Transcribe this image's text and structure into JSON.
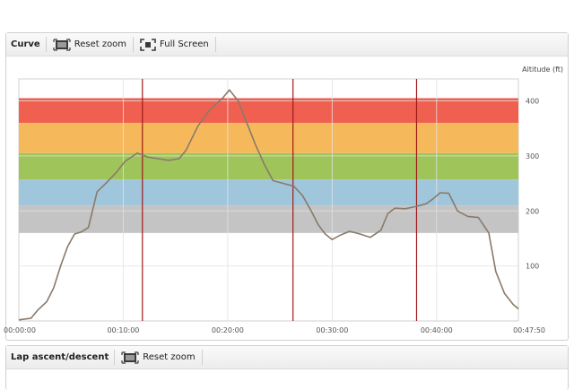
{
  "curve_panel": {
    "title": "Curve",
    "reset_zoom_label": "Reset zoom",
    "full_screen_label": "Full Screen"
  },
  "lap_panel": {
    "title": "Lap ascent/descent",
    "reset_zoom_label": "Reset zoom"
  },
  "colors": {
    "zone_red": "#ef6051",
    "zone_orange": "#f5b95c",
    "zone_green": "#9fc45a",
    "zone_blue": "#a0c6dc",
    "zone_gray": "#c4c4c4",
    "curve": "#8a7a6a",
    "lap_line": "#a01a1a",
    "grid": "#e2e2e2"
  },
  "chart_data": {
    "type": "line",
    "ylabel": "Altitude (ft)",
    "xlim_seconds": [
      0,
      2870
    ],
    "ylim": [
      0,
      440
    ],
    "x_ticks": [
      {
        "t": 0,
        "label": "00:00:00"
      },
      {
        "t": 600,
        "label": "00:10:00"
      },
      {
        "t": 1200,
        "label": "00:20:00"
      },
      {
        "t": 1800,
        "label": "00:30:00"
      },
      {
        "t": 2400,
        "label": "00:40:00"
      },
      {
        "t": 2870,
        "label": "00:47:50"
      }
    ],
    "y_ticks": [
      100,
      200,
      300,
      400
    ],
    "zones": [
      {
        "from": 360,
        "to": 405,
        "color": "zone_red"
      },
      {
        "from": 305,
        "to": 360,
        "color": "zone_orange"
      },
      {
        "from": 257,
        "to": 305,
        "color": "zone_green"
      },
      {
        "from": 210,
        "to": 257,
        "color": "zone_blue"
      },
      {
        "from": 160,
        "to": 210,
        "color": "zone_gray"
      }
    ],
    "lap_markers_seconds": [
      710,
      1575,
      2285
    ],
    "series": [
      {
        "points": [
          [
            0,
            2
          ],
          [
            70,
            5
          ],
          [
            110,
            20
          ],
          [
            160,
            35
          ],
          [
            200,
            60
          ],
          [
            240,
            100
          ],
          [
            280,
            135
          ],
          [
            320,
            158
          ],
          [
            360,
            162
          ],
          [
            400,
            170
          ],
          [
            450,
            235
          ],
          [
            500,
            250
          ],
          [
            560,
            270
          ],
          [
            610,
            290
          ],
          [
            680,
            305
          ],
          [
            740,
            298
          ],
          [
            800,
            295
          ],
          [
            860,
            292
          ],
          [
            920,
            295
          ],
          [
            960,
            310
          ],
          [
            1030,
            355
          ],
          [
            1100,
            385
          ],
          [
            1170,
            405
          ],
          [
            1210,
            420
          ],
          [
            1260,
            400
          ],
          [
            1310,
            360
          ],
          [
            1360,
            320
          ],
          [
            1410,
            285
          ],
          [
            1460,
            255
          ],
          [
            1520,
            250
          ],
          [
            1580,
            245
          ],
          [
            1630,
            228
          ],
          [
            1680,
            200
          ],
          [
            1720,
            175
          ],
          [
            1760,
            158
          ],
          [
            1800,
            148
          ],
          [
            1840,
            155
          ],
          [
            1900,
            163
          ],
          [
            1960,
            158
          ],
          [
            2020,
            152
          ],
          [
            2080,
            165
          ],
          [
            2120,
            195
          ],
          [
            2160,
            205
          ],
          [
            2220,
            204
          ],
          [
            2280,
            208
          ],
          [
            2340,
            213
          ],
          [
            2380,
            222
          ],
          [
            2420,
            233
          ],
          [
            2470,
            232
          ],
          [
            2520,
            200
          ],
          [
            2580,
            190
          ],
          [
            2640,
            188
          ],
          [
            2700,
            160
          ],
          [
            2740,
            90
          ],
          [
            2790,
            50
          ],
          [
            2840,
            30
          ],
          [
            2870,
            22
          ]
        ]
      }
    ]
  }
}
